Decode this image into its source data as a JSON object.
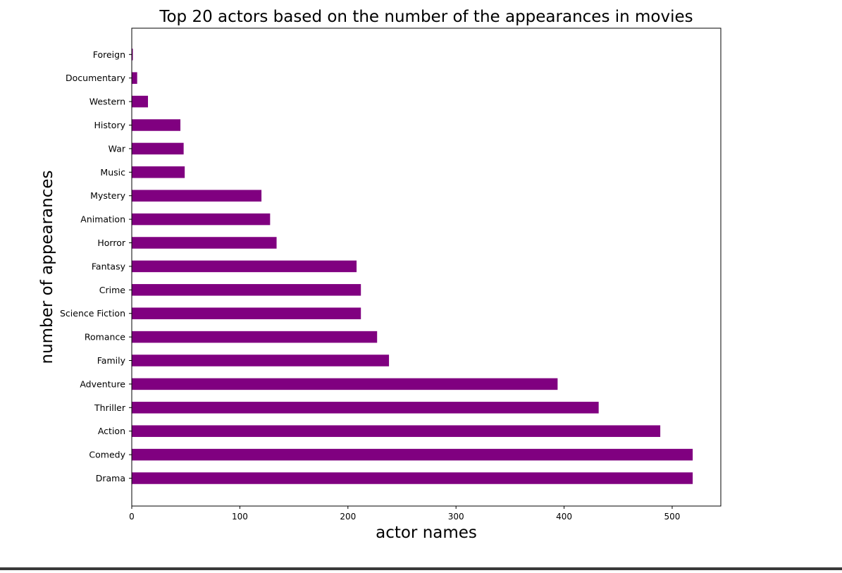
{
  "chart_data": {
    "type": "bar",
    "orientation": "horizontal",
    "title": "Top 20 actors based on the number of the appearances in movies",
    "xlabel": "actor names",
    "ylabel": "number of appearances",
    "categories": [
      "Drama",
      "Comedy",
      "Action",
      "Thriller",
      "Adventure",
      "Family",
      "Romance",
      "Science Fiction",
      "Crime",
      "Fantasy",
      "Horror",
      "Animation",
      "Mystery",
      "Music",
      "War",
      "History",
      "Western",
      "Documentary",
      "Foreign"
    ],
    "values": [
      519,
      519,
      489,
      432,
      394,
      238,
      227,
      212,
      212,
      208,
      134,
      128,
      120,
      49,
      48,
      45,
      15,
      5,
      1
    ],
    "xlim": [
      0,
      545
    ],
    "xticks": [
      0,
      100,
      200,
      300,
      400,
      500
    ],
    "grid": false,
    "legend": "none",
    "bar_color": "#800080"
  }
}
